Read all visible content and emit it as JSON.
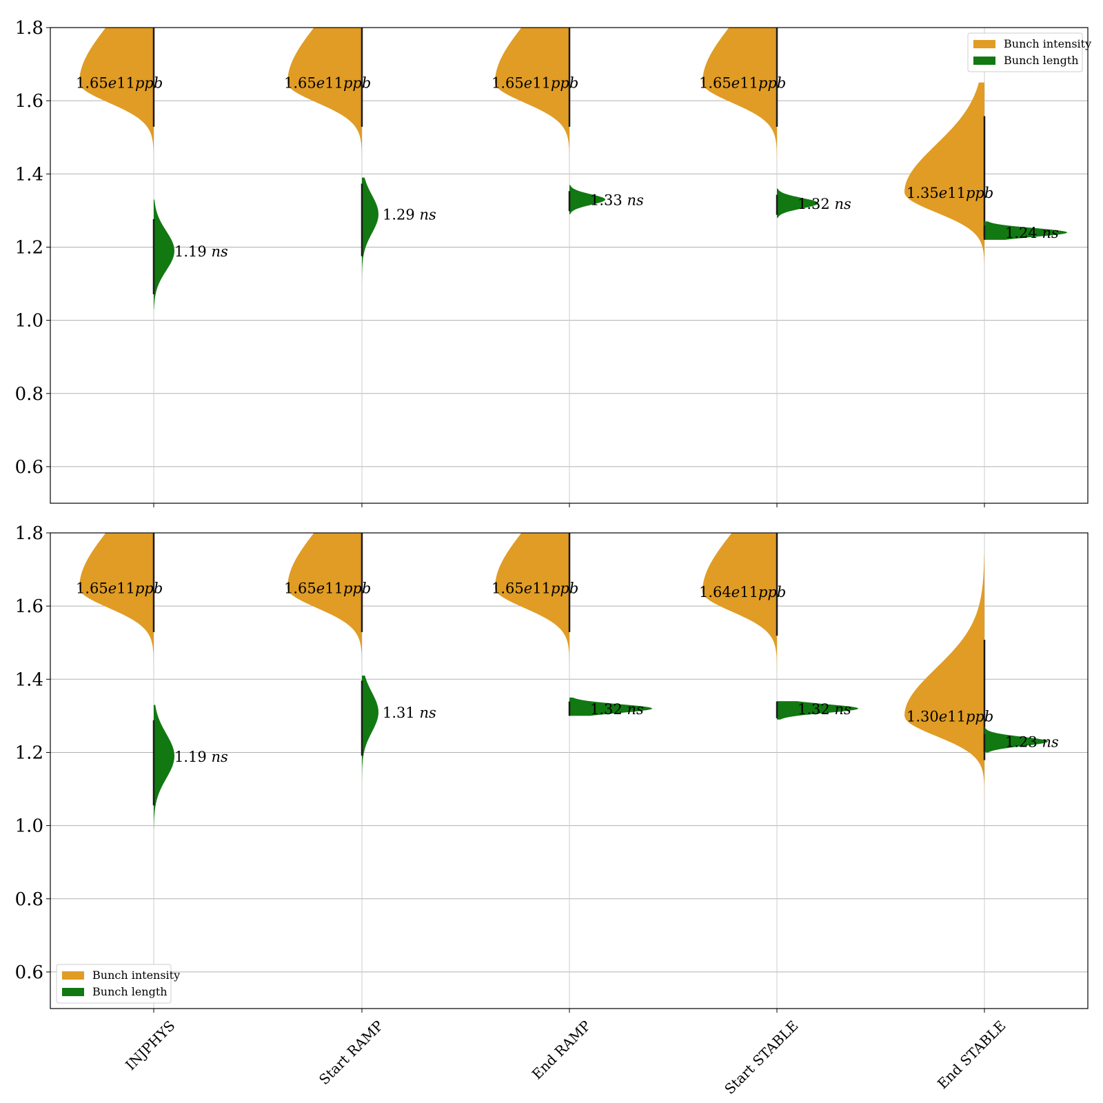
{
  "colors": {
    "intensity": "#e09c24",
    "length": "#127812",
    "grid": "#b0b0b0",
    "frame": "#000000"
  },
  "chart_data": [
    {
      "type": "violin",
      "categories": [
        "INJPHYS",
        "Start RAMP",
        "End RAMP",
        "Start STABLE",
        "End STABLE"
      ],
      "ylim": [
        0.5,
        1.8
      ],
      "yticks": [
        "0.6",
        "0.8",
        "1.0",
        "1.2",
        "1.4",
        "1.6",
        "1.8"
      ],
      "grid": "horizontal",
      "show_xtick_labels": false,
      "legend": {
        "placement": "top-right",
        "entries": [
          "Bunch intensity",
          "Bunch length"
        ]
      },
      "series": [
        {
          "name": "Bunch intensity",
          "side": "left",
          "medians": [
            1.65,
            1.65,
            1.65,
            1.65,
            1.35
          ],
          "labels": [
            "1.65e11",
            "1.65e11",
            "1.65e11",
            "1.65e11",
            "1.35e11"
          ],
          "unit": "ppb",
          "ranges": [
            [
              1.4,
              1.8
            ],
            [
              1.4,
              1.8
            ],
            [
              1.4,
              1.8
            ],
            [
              1.4,
              1.8
            ],
            [
              1.15,
              1.65
            ]
          ]
        },
        {
          "name": "Bunch length",
          "side": "right",
          "medians": [
            1.19,
            1.29,
            1.33,
            1.32,
            1.24
          ],
          "labels": [
            "1.19",
            "1.29",
            "1.33",
            "1.32",
            "1.24"
          ],
          "unit": "ns",
          "ranges": [
            [
              1.03,
              1.33
            ],
            [
              1.1,
              1.39
            ],
            [
              1.29,
              1.37
            ],
            [
              1.28,
              1.36
            ],
            [
              1.22,
              1.27
            ]
          ]
        }
      ]
    },
    {
      "type": "violin",
      "categories": [
        "INJPHYS",
        "Start RAMP",
        "End RAMP",
        "Start STABLE",
        "End STABLE"
      ],
      "ylim": [
        0.5,
        1.8
      ],
      "yticks": [
        "0.6",
        "0.8",
        "1.0",
        "1.2",
        "1.4",
        "1.6",
        "1.8"
      ],
      "grid": "horizontal",
      "show_xtick_labels": true,
      "legend": {
        "placement": "bottom-left",
        "entries": [
          "Bunch intensity",
          "Bunch length"
        ]
      },
      "series": [
        {
          "name": "Bunch intensity",
          "side": "left",
          "medians": [
            1.65,
            1.65,
            1.65,
            1.64,
            1.3
          ],
          "labels": [
            "1.65e11",
            "1.65e11",
            "1.65e11",
            "1.64e11",
            "1.30e11"
          ],
          "unit": "ppb",
          "ranges": [
            [
              1.4,
              1.8
            ],
            [
              1.4,
              1.8
            ],
            [
              1.4,
              1.8
            ],
            [
              1.4,
              1.8
            ],
            [
              1.07,
              1.74
            ]
          ]
        },
        {
          "name": "Bunch length",
          "side": "right",
          "medians": [
            1.19,
            1.31,
            1.32,
            1.32,
            1.23
          ],
          "labels": [
            "1.19",
            "1.31",
            "1.32",
            "1.32",
            "1.23"
          ],
          "unit": "ns",
          "ranges": [
            [
              0.99,
              1.33
            ],
            [
              1.11,
              1.41
            ],
            [
              1.3,
              1.35
            ],
            [
              1.29,
              1.34
            ],
            [
              1.2,
              1.27
            ]
          ]
        }
      ]
    }
  ]
}
